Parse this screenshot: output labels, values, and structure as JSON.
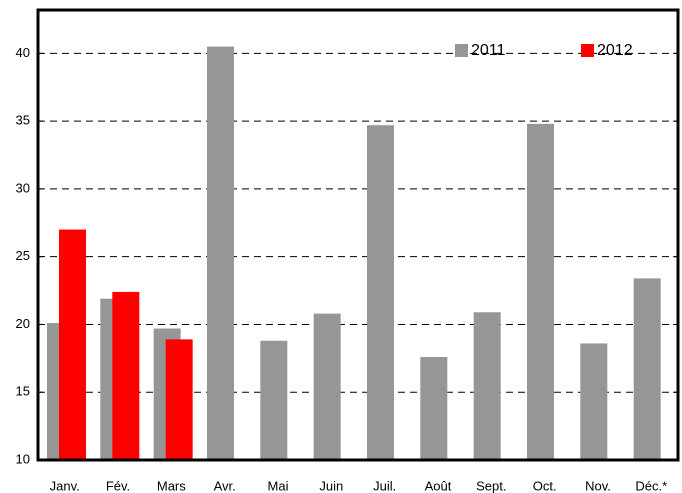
{
  "chart_data": {
    "type": "bar",
    "categories": [
      "Janv.",
      "Fév.",
      "Mars",
      "Avr.",
      "Mai",
      "Juin",
      "Juil.",
      "Août",
      "Sept.",
      "Oct.",
      "Nov.",
      "Déc.*"
    ],
    "series": [
      {
        "name": "2011",
        "color": "#969696",
        "values": [
          20.1,
          21.9,
          19.7,
          40.5,
          18.8,
          20.8,
          34.7,
          17.6,
          20.9,
          34.8,
          18.6,
          23.4
        ]
      },
      {
        "name": "2012",
        "color": "#ff0000",
        "values": [
          27.0,
          22.4,
          18.9,
          null,
          null,
          null,
          null,
          null,
          null,
          null,
          null,
          null
        ]
      }
    ],
    "ylim": [
      10,
      43.2
    ],
    "yticks": [
      10,
      15,
      20,
      25,
      30,
      35,
      40
    ],
    "grid": true,
    "legend": "upper right"
  }
}
